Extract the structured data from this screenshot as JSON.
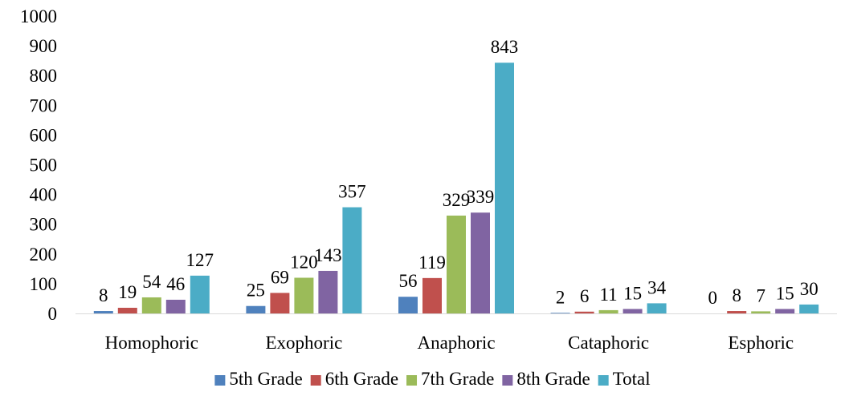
{
  "chart_data": {
    "type": "bar",
    "title": "",
    "xlabel": "",
    "ylabel": "",
    "ylim": [
      0,
      1000
    ],
    "yticks": [
      0,
      100,
      200,
      300,
      400,
      500,
      600,
      700,
      800,
      900,
      1000
    ],
    "grid": false,
    "legend_position": "bottom",
    "categories": [
      "Homophoric",
      "Exophoric",
      "Anaphoric",
      "Cataphoric",
      "Esphoric"
    ],
    "series": [
      {
        "name": "5th Grade",
        "color": "#4F81BD",
        "values": [
          8,
          25,
          56,
          2,
          0
        ]
      },
      {
        "name": "6th Grade",
        "color": "#C0504D",
        "values": [
          19,
          69,
          119,
          6,
          8
        ]
      },
      {
        "name": "7th Grade",
        "color": "#9BBB59",
        "values": [
          54,
          120,
          329,
          11,
          7
        ]
      },
      {
        "name": "8th Grade",
        "color": "#8064A2",
        "values": [
          46,
          143,
          339,
          15,
          15
        ]
      },
      {
        "name": "Total",
        "color": "#4BACC6",
        "values": [
          127,
          357,
          843,
          34,
          30
        ]
      }
    ]
  }
}
